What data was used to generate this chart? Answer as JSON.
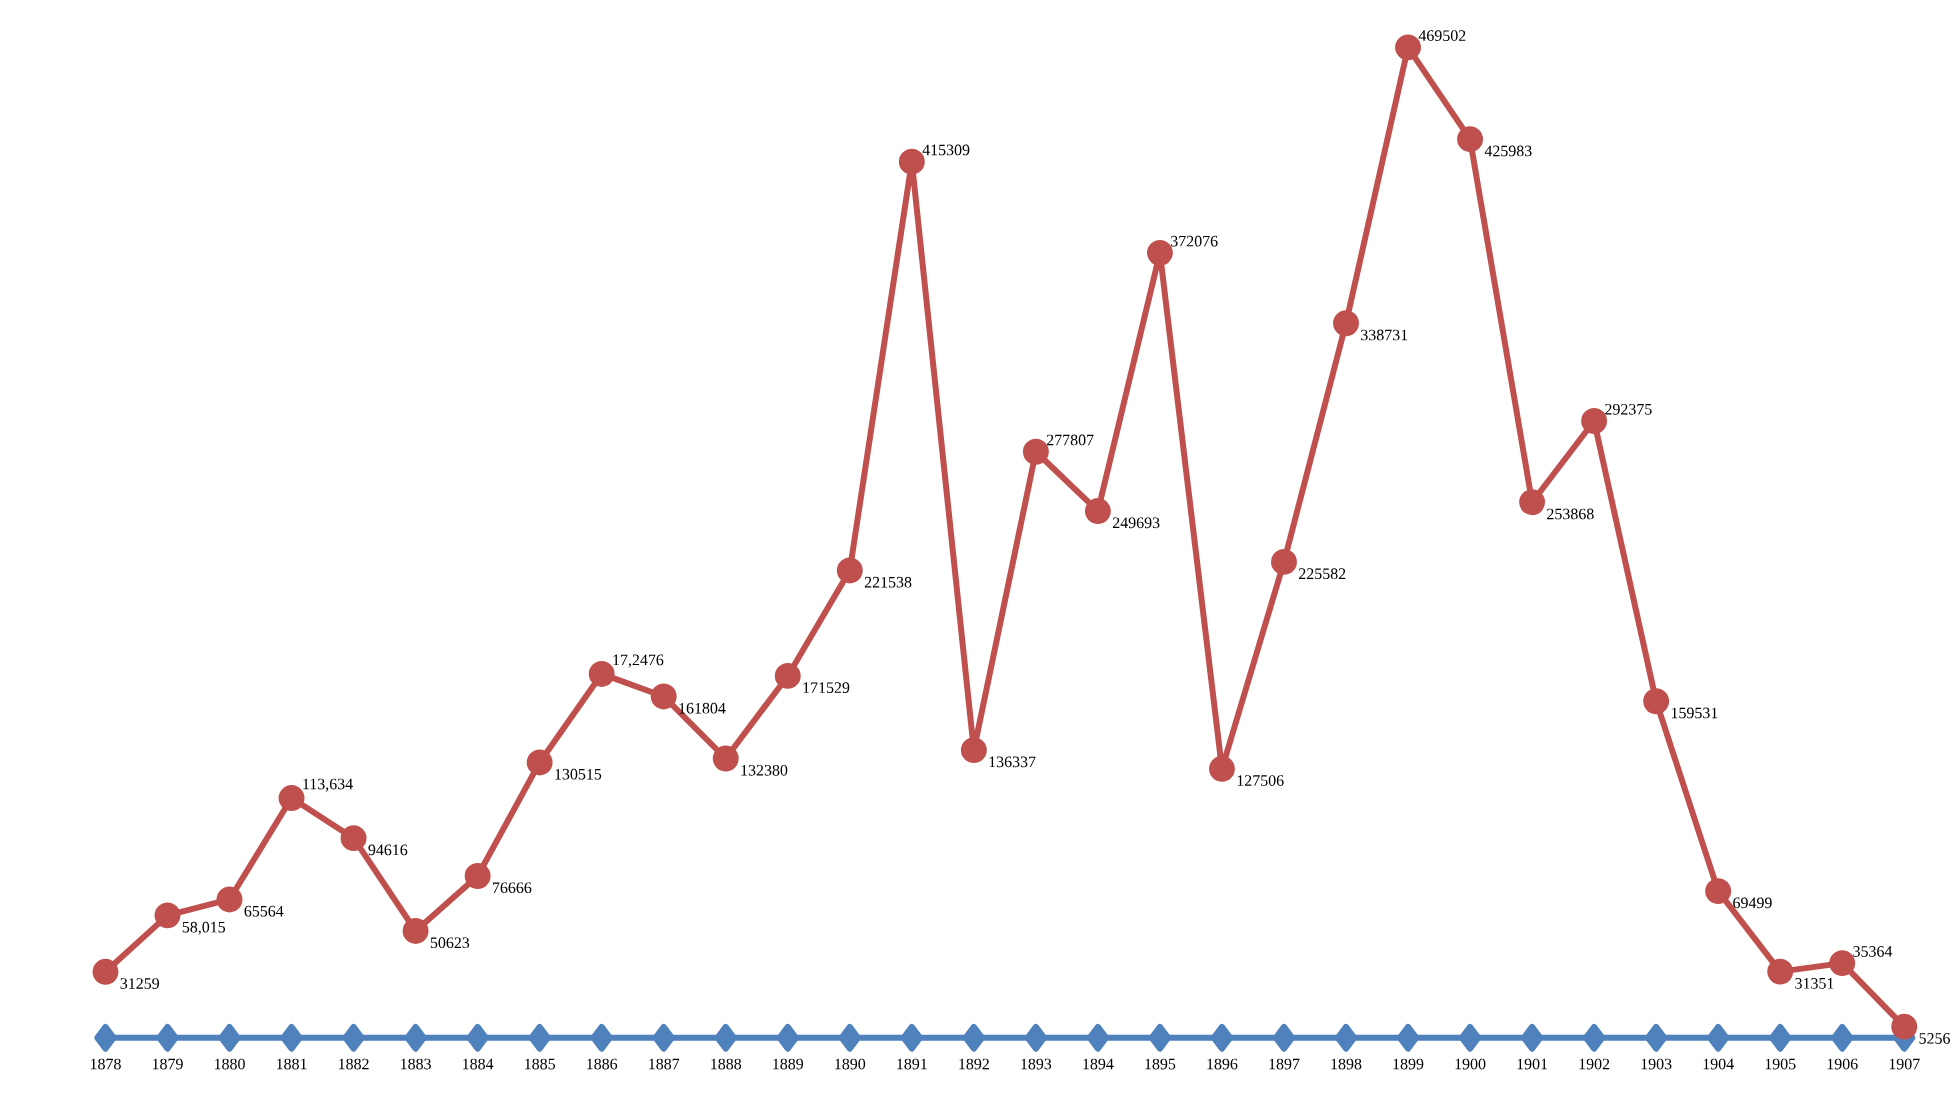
{
  "chart_data": {
    "type": "line",
    "categories": [
      "1878",
      "1879",
      "1880",
      "1881",
      "1882",
      "1883",
      "1884",
      "1885",
      "1886",
      "1887",
      "1888",
      "1889",
      "1890",
      "1891",
      "1892",
      "1893",
      "1894",
      "1895",
      "1896",
      "1897",
      "1898",
      "1899",
      "1900",
      "1901",
      "1902",
      "1903",
      "1904",
      "1905",
      "1906",
      "1907"
    ],
    "series": [
      {
        "color": "#4f81bd",
        "marker": "diamond",
        "values": [
          0,
          0,
          0,
          0,
          0,
          0,
          0,
          0,
          0,
          0,
          0,
          0,
          0,
          0,
          0,
          0,
          0,
          0,
          0,
          0,
          0,
          0,
          0,
          0,
          0,
          0,
          0,
          0,
          0,
          0
        ]
      },
      {
        "color": "#c0504d",
        "marker": "circle",
        "values": [
          31259,
          58015,
          65564,
          113634,
          94616,
          50623,
          76666,
          130515,
          172476,
          161804,
          132380,
          171529,
          221538,
          415309,
          136337,
          277807,
          249693,
          372076,
          127506,
          225582,
          338731,
          469502,
          425983,
          253868,
          292375,
          159531,
          69499,
          31351,
          35364,
          5256
        ],
        "value_labels": [
          "31259",
          "58,015",
          "65564",
          "113,634",
          "94616",
          "50623",
          "76666",
          "130515",
          "17,2476",
          "161804",
          "132380",
          "171529",
          "221538",
          "415309",
          "136337",
          "277807",
          "249693",
          "372076",
          "127506",
          "225582",
          "338731",
          "469502",
          "425983",
          "253868",
          "292375",
          "159531",
          "69499",
          "31351",
          "35364",
          "5256"
        ]
      }
    ],
    "grid": false,
    "legend": false,
    "line_style": "solid"
  }
}
